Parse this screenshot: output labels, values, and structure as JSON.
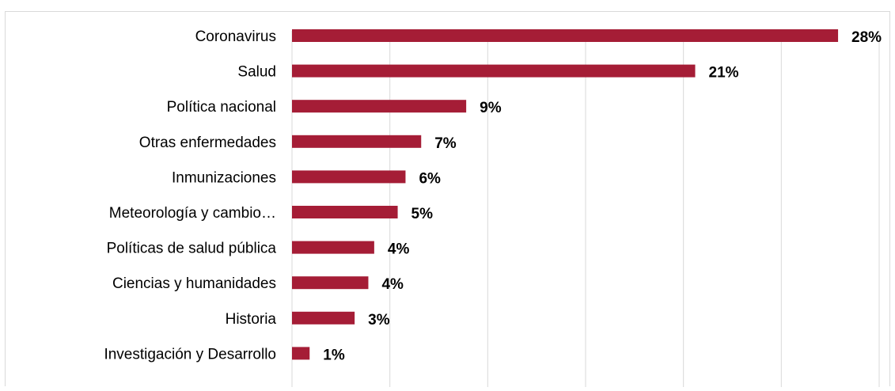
{
  "chart_data": {
    "type": "bar",
    "orientation": "horizontal",
    "categories": [
      "Coronavirus",
      "Salud",
      "Política nacional",
      "Otras enfermedades",
      "Inmunizaciones",
      "Meteorología y cambio…",
      "Políticas de salud pública",
      "Ciencias y humanidades",
      "Historia",
      "Investigación y Desarrollo"
    ],
    "values": [
      28,
      21,
      9,
      7,
      6,
      5,
      4,
      4,
      3,
      1
    ],
    "display_values": [
      27.9,
      20.6,
      8.9,
      6.6,
      5.8,
      5.4,
      4.2,
      3.9,
      3.2,
      0.9
    ],
    "value_labels": [
      "28%",
      "21%",
      "9%",
      "7%",
      "6%",
      "5%",
      "4%",
      "4%",
      "3%",
      "1%"
    ],
    "unit": "%",
    "xlim": [
      0,
      30
    ],
    "grid": true,
    "legend": "none",
    "bar_color": "#a51d36",
    "grid_color": "#d9d9d9"
  }
}
